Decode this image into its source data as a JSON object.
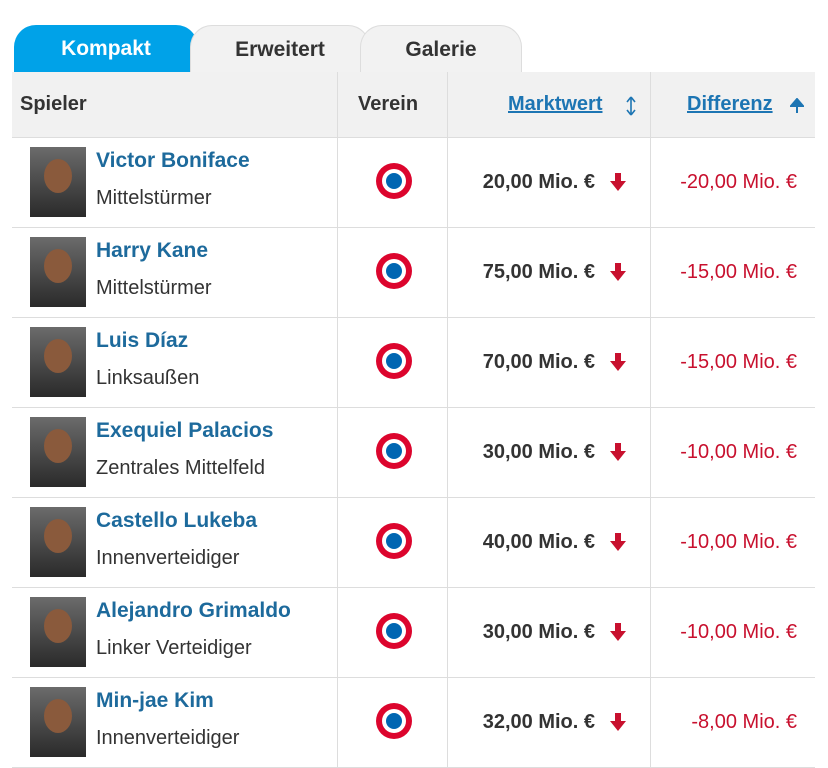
{
  "tabs": [
    "Kompakt",
    "Erweitert",
    "Galerie"
  ],
  "table": {
    "headers": [
      "Spieler",
      "Verein",
      "Marktwert",
      "Differenz"
    ],
    "rows": [
      {
        "name": "Victor Boniface",
        "position": "Mittelstürmer",
        "market_value": "20,00 Mio. €",
        "difference": "-20,00 Mio. €"
      },
      {
        "name": "Harry Kane",
        "position": "Mittelstürmer",
        "market_value": "75,00 Mio. €",
        "difference": "-15,00 Mio. €"
      },
      {
        "name": "Luis Díaz",
        "position": "Linksaußen",
        "market_value": "70,00 Mio. €",
        "difference": "-15,00 Mio. €"
      },
      {
        "name": "Exequiel Palacios",
        "position": "Zentrales Mittelfeld",
        "market_value": "30,00 Mio. €",
        "difference": "-10,00 Mio. €"
      },
      {
        "name": "Castello Lukeba",
        "position": "Innenverteidiger",
        "market_value": "40,00 Mio. €",
        "difference": "-10,00 Mio. €"
      },
      {
        "name": "Alejandro Grimaldo",
        "position": "Linker Verteidiger",
        "market_value": "30,00 Mio. €",
        "difference": "-10,00 Mio. €"
      },
      {
        "name": "Min-jae Kim",
        "position": "Innenverteidiger",
        "market_value": "32,00 Mio. €",
        "difference": "-8,00 Mio. €"
      }
    ]
  }
}
